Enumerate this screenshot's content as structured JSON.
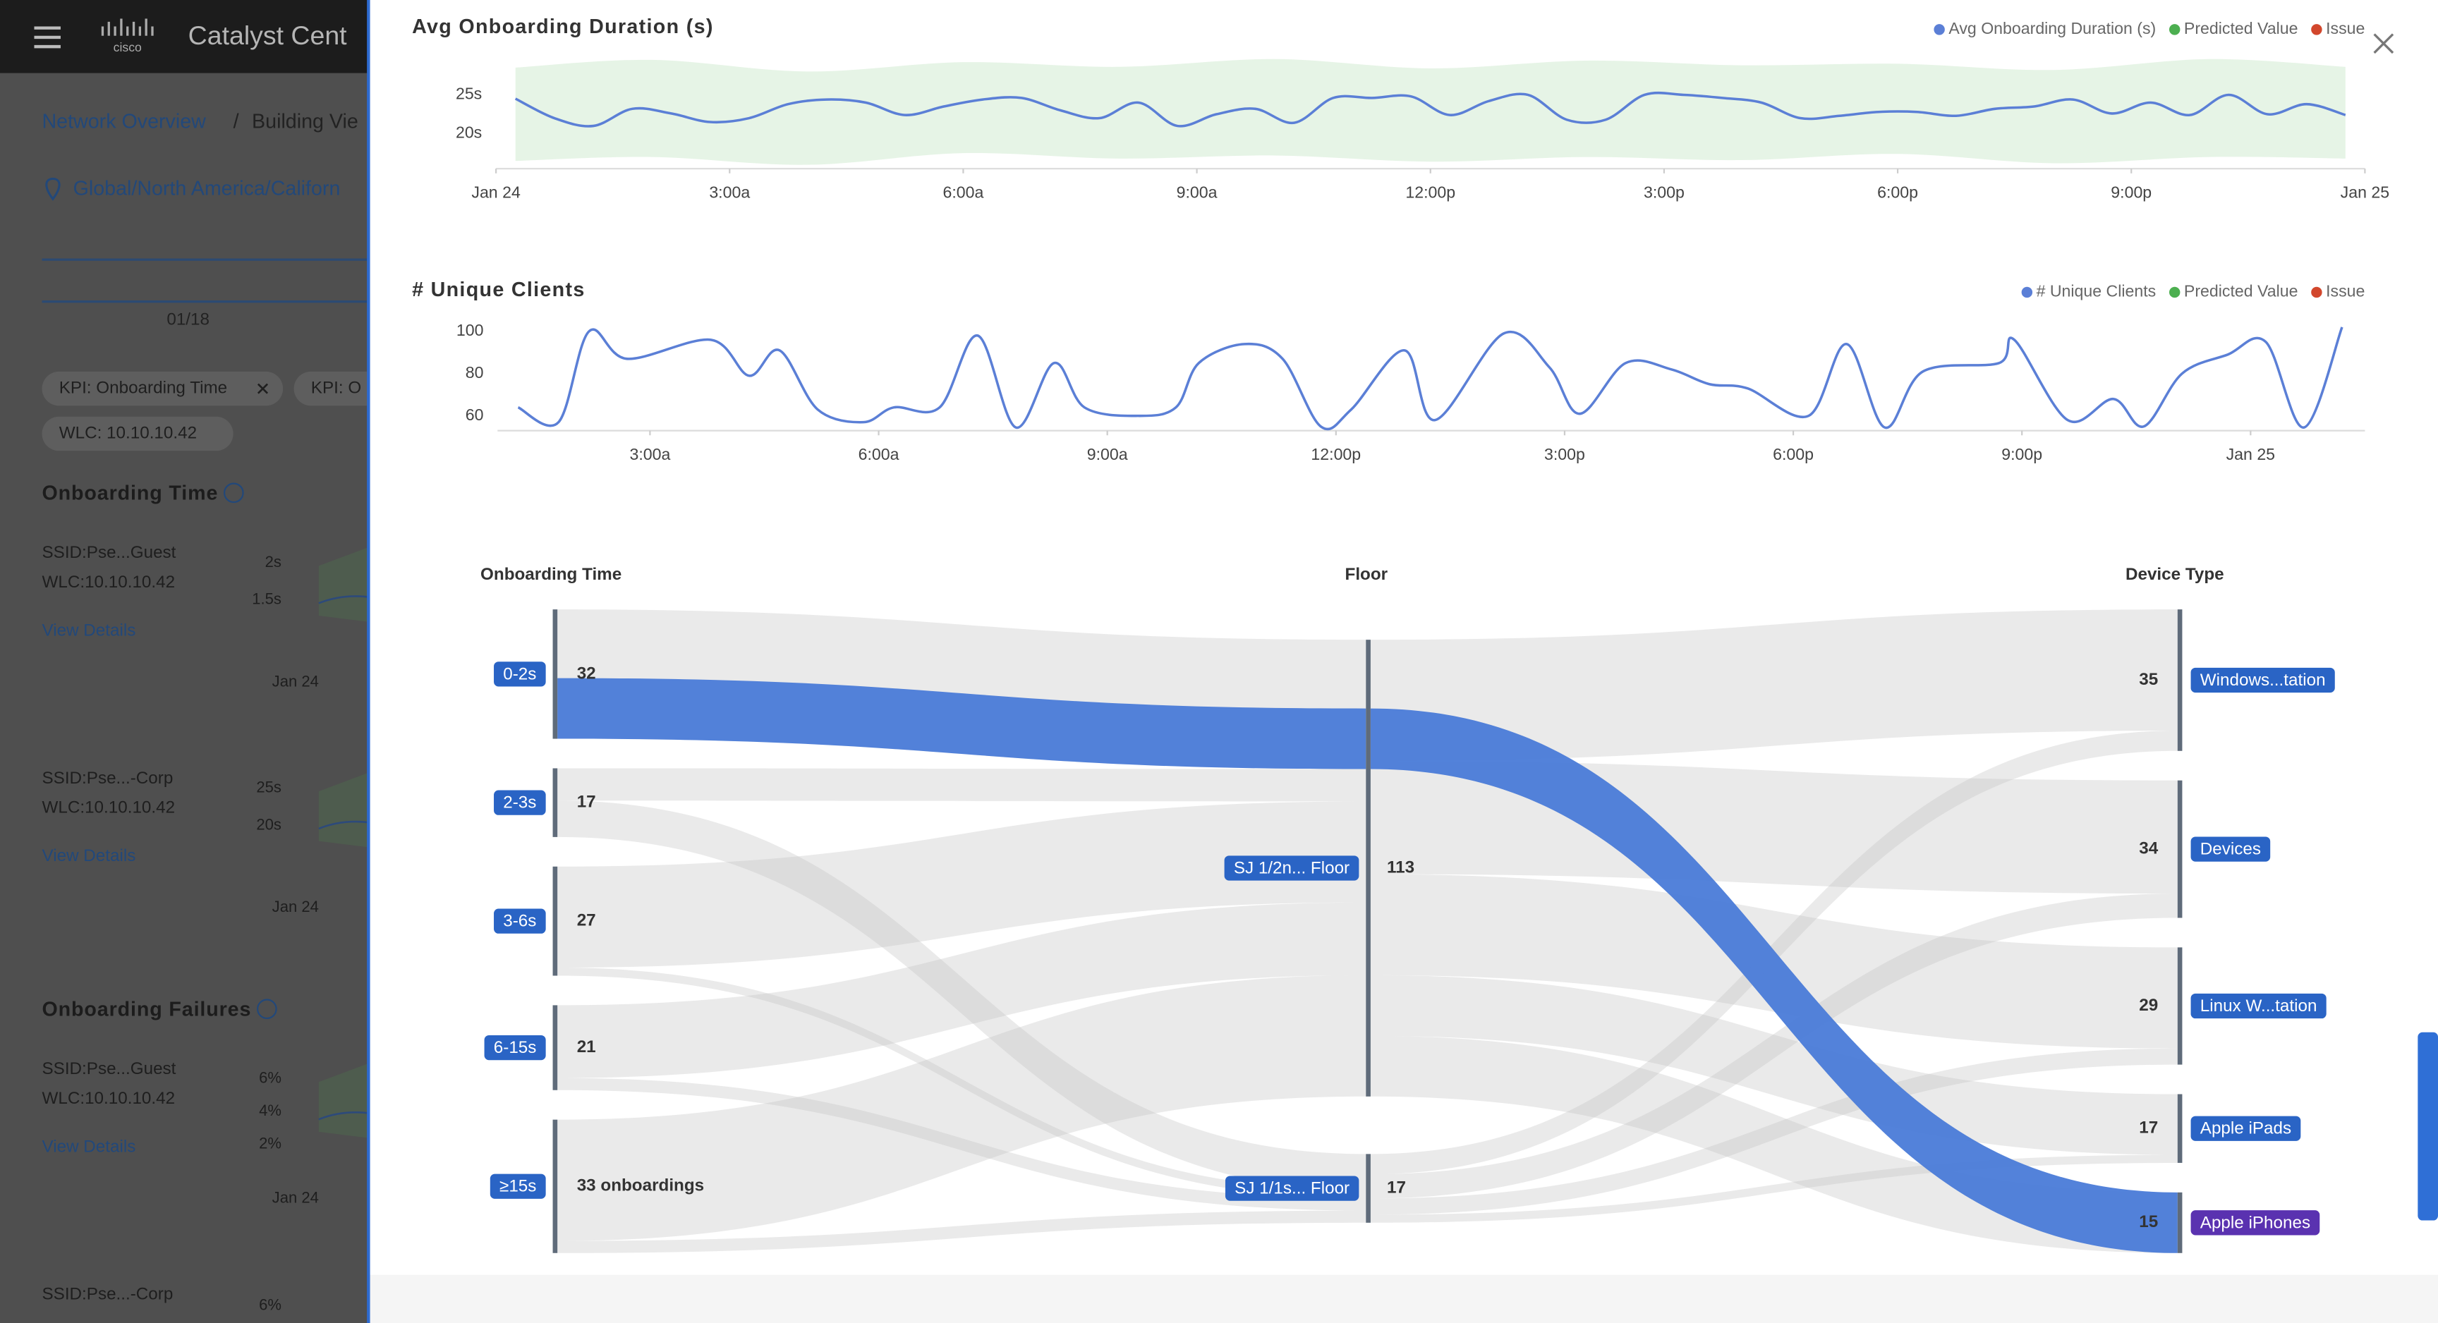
{
  "app": {
    "brand": "cisco",
    "title": "Catalyst Cent"
  },
  "background": {
    "breadcrumb": [
      "Network Overview",
      "/",
      "Building Vie"
    ],
    "location": "Global/North America/Californ",
    "date": "01/18",
    "filters": [
      "KPI: Onboarding Time",
      "KPI: O",
      "WLC: 10.10.10.42"
    ],
    "sections": [
      {
        "title": "Onboarding Time",
        "cards": [
          {
            "ssid": "SSID:Pse...Guest",
            "wlc": "WLC:10.10.10.42",
            "link": "View Details",
            "ticks": [
              "2s",
              "1.5s"
            ],
            "x": "Jan 24"
          },
          {
            "ssid": "SSID:Pse...-Corp",
            "wlc": "WLC:10.10.10.42",
            "link": "View Details",
            "ticks": [
              "25s",
              "20s"
            ],
            "x": "Jan 24"
          }
        ]
      },
      {
        "title": "Onboarding Failures",
        "cards": [
          {
            "ssid": "SSID:Pse...Guest",
            "wlc": "WLC:10.10.10.42",
            "link": "View Details",
            "ticks": [
              "6%",
              "4%",
              "2%"
            ],
            "x": "Jan 24"
          },
          {
            "ssid": "SSID:Pse...-Corp",
            "ticks": [
              "6%"
            ]
          }
        ]
      }
    ]
  },
  "chart_data": [
    {
      "type": "line",
      "title": "Avg Onboarding Duration (s)",
      "legend": "top-right",
      "grid": false,
      "x": [
        0.25,
        0.75,
        1.25,
        1.75,
        2.25,
        2.75,
        3.25,
        3.75,
        4.25,
        4.75,
        5.25,
        5.75,
        6.25,
        6.75,
        7.25,
        7.75,
        8.25,
        8.75,
        9.25,
        9.75,
        10.25,
        10.75,
        11.25,
        11.75,
        12.25,
        12.75,
        13.25,
        13.75,
        14.25,
        14.75,
        15.25,
        15.75,
        16.25,
        16.75,
        17.25,
        17.75,
        18.25,
        18.75,
        19.25,
        19.75,
        20.25,
        20.75,
        21.25,
        21.75,
        22.25,
        22.75,
        23.25,
        23.75
      ],
      "series": [
        {
          "name": "Avg Onboarding Duration (s)",
          "color": "#5b7fd6",
          "values": [
            24.5,
            22,
            21,
            23.2,
            22.6,
            21.5,
            22,
            23.8,
            24.4,
            24,
            22.4,
            23.5,
            24.4,
            24.6,
            23,
            22,
            24,
            21,
            22.5,
            23.2,
            21.4,
            24.6,
            24.6,
            24.8,
            22.4,
            24.2,
            25,
            21.8,
            21.8,
            25,
            25,
            24.6,
            24,
            22,
            22.3,
            22.8,
            22.8,
            22.3,
            23.2,
            23.5,
            24.4,
            22.6,
            24,
            22.4,
            25,
            22.5,
            23.8,
            22.4
          ]
        },
        {
          "name": "Predicted Value",
          "color": "#4caf50",
          "x": [
            0.25,
            2,
            4,
            6,
            8,
            10,
            12,
            14,
            16,
            18,
            20,
            22,
            23.75
          ],
          "lower": [
            16.5,
            17,
            16,
            17.5,
            16.8,
            17.2,
            16.4,
            17,
            16.6,
            17.4,
            16.2,
            17,
            16.8
          ],
          "upper": [
            28.5,
            29.5,
            28,
            29.2,
            28.6,
            29.6,
            28.4,
            29.4,
            28.8,
            29,
            28.2,
            29.6,
            28.6
          ]
        },
        {
          "name": "Issue",
          "color": "#d2472c"
        }
      ],
      "xlim": [
        0,
        24
      ],
      "xticks": [
        {
          "value": 0,
          "label": "Jan 24"
        },
        {
          "value": 3,
          "label": "3:00a"
        },
        {
          "value": 6,
          "label": "6:00a"
        },
        {
          "value": 9,
          "label": "9:00a"
        },
        {
          "value": 12,
          "label": "12:00p"
        },
        {
          "value": 15,
          "label": "3:00p"
        },
        {
          "value": 18,
          "label": "6:00p"
        },
        {
          "value": 21,
          "label": "9:00p"
        },
        {
          "value": 24,
          "label": "Jan 25"
        }
      ],
      "ylim": [
        15.5,
        30
      ],
      "yticks": [
        {
          "value": 20,
          "label": "20s"
        },
        {
          "value": 25,
          "label": "25s"
        }
      ]
    },
    {
      "type": "line",
      "title": "# Unique Clients",
      "legend": "top-right",
      "grid": false,
      "x": [
        1.27,
        1.8,
        2.2,
        2.7,
        3.8,
        4.3,
        4.7,
        5.2,
        5.8,
        6.2,
        6.8,
        7.3,
        7.8,
        8.3,
        8.7,
        9.4,
        9.9,
        10.2,
        10.8,
        11.3,
        11.8,
        12.2,
        12.9,
        13.3,
        14.2,
        14.8,
        15.2,
        15.8,
        16.4,
        16.9,
        17.4,
        18.2,
        18.7,
        19.2,
        19.7,
        20.7,
        20.9,
        21.6,
        22.2,
        22.6,
        23.1,
        23.7,
        24.2,
        24.7,
        25.2
      ],
      "series": [
        {
          "name": "# Unique Clients",
          "color": "#5b7fd6",
          "values": [
            64,
            57,
            100,
            87,
            96,
            79,
            91,
            63,
            57,
            64,
            64,
            98,
            54.5,
            85,
            64,
            60,
            64,
            85,
            94,
            87,
            55,
            63,
            91,
            58,
            99,
            83,
            61,
            85,
            82,
            75,
            73,
            60,
            94,
            54.5,
            81,
            85,
            96,
            58,
            68,
            55,
            80,
            89,
            95,
            54.5,
            102
          ]
        },
        {
          "name": "Predicted Value",
          "color": "#4caf50"
        },
        {
          "name": "Issue",
          "color": "#d2472c"
        }
      ],
      "xlim": [
        1,
        25.5
      ],
      "xticks": [
        {
          "value": 3,
          "label": "3:00a"
        },
        {
          "value": 6,
          "label": "6:00a"
        },
        {
          "value": 9,
          "label": "9:00a"
        },
        {
          "value": 12,
          "label": "12:00p"
        },
        {
          "value": 15,
          "label": "3:00p"
        },
        {
          "value": 18,
          "label": "6:00p"
        },
        {
          "value": 21,
          "label": "9:00p"
        },
        {
          "value": 24,
          "label": "Jan 25"
        }
      ],
      "ylim": [
        53,
        106
      ],
      "yticks": [
        60,
        80,
        100
      ]
    }
  ],
  "sankey": {
    "label_color": "#2a64c5",
    "columns": [
      {
        "title": "Onboarding Time",
        "nodes": [
          {
            "name": "0-2s",
            "value": 32
          },
          {
            "name": "2-3s",
            "value": 17
          },
          {
            "name": "3-6s",
            "value": 27
          },
          {
            "name": "6-15s",
            "value": 21
          },
          {
            "name": "≥15s",
            "value": 33,
            "value_label": "33 onboardings"
          }
        ]
      },
      {
        "title": "Floor",
        "nodes": [
          {
            "name": "SJ 1/2n... Floor",
            "value": 113
          },
          {
            "name": "SJ 1/1s... Floor",
            "value": 17
          }
        ]
      },
      {
        "title": "Device Type",
        "nodes": [
          {
            "name": "Windows...tation",
            "value": 35
          },
          {
            "name": "Devices",
            "value": 34
          },
          {
            "name": "Linux W...tation",
            "value": 29
          },
          {
            "name": "Apple iPads",
            "value": 17
          },
          {
            "name": "Apple iPhones",
            "value": 15,
            "color": "#5a32b0"
          }
        ]
      }
    ],
    "links": [
      {
        "source": "0-2s",
        "target": "SJ 1/2n... Floor",
        "value": 32
      },
      {
        "source": "2-3s",
        "target": "SJ 1/2n... Floor",
        "value": 8
      },
      {
        "source": "2-3s",
        "target": "SJ 1/1s... Floor",
        "value": 9
      },
      {
        "source": "3-6s",
        "target": "SJ 1/2n... Floor",
        "value": 25
      },
      {
        "source": "3-6s",
        "target": "SJ 1/1s... Floor",
        "value": 2
      },
      {
        "source": "6-15s",
        "target": "SJ 1/2n... Floor",
        "value": 18
      },
      {
        "source": "6-15s",
        "target": "SJ 1/1s... Floor",
        "value": 3
      },
      {
        "source": "≥15s",
        "target": "SJ 1/2n... Floor",
        "value": 30
      },
      {
        "source": "≥15s",
        "target": "SJ 1/1s... Floor",
        "value": 3
      },
      {
        "source": "SJ 1/2n... Floor",
        "target": "Windows...tation",
        "value": 30
      },
      {
        "source": "SJ 1/2n... Floor",
        "target": "Devices",
        "value": 28
      },
      {
        "source": "SJ 1/2n... Floor",
        "target": "Linux W...tation",
        "value": 25
      },
      {
        "source": "SJ 1/2n... Floor",
        "target": "Apple iPads",
        "value": 15
      },
      {
        "source": "SJ 1/2n... Floor",
        "target": "Apple iPhones",
        "value": 15
      },
      {
        "source": "SJ 1/1s... Floor",
        "target": "Windows...tation",
        "value": 5
      },
      {
        "source": "SJ 1/1s... Floor",
        "target": "Devices",
        "value": 6
      },
      {
        "source": "SJ 1/1s... Floor",
        "target": "Linux W...tation",
        "value": 4
      },
      {
        "source": "SJ 1/1s... Floor",
        "target": "Apple iPads",
        "value": 2
      }
    ],
    "highlight": {
      "path": [
        "0-2s",
        "SJ 1/2n... Floor",
        "Apple iPhones"
      ],
      "value": 15,
      "color": "#4a7bd8"
    }
  }
}
